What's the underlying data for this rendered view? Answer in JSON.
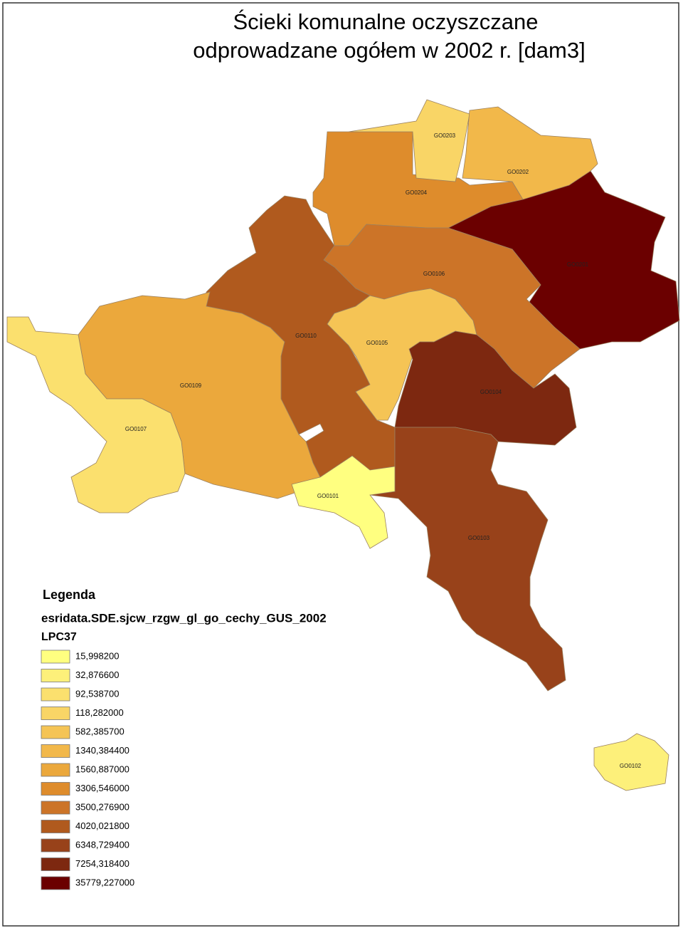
{
  "title": {
    "lines": [
      "Ścieki komunalne oczyszczane",
      "odprowadzane ogółem w 2002 r. [dam3]"
    ]
  },
  "regions": [
    {
      "label": "GO0204",
      "color": "#de8c2c"
    },
    {
      "label": "GO0203",
      "color": "#f9d566"
    },
    {
      "label": "GO0202",
      "color": "#f2b84a"
    },
    {
      "label": "GO0201",
      "color": "#6b0000"
    },
    {
      "label": "GO0106",
      "color": "#cc7428"
    },
    {
      "label": "GO0110",
      "color": "#b05a1e"
    },
    {
      "label": "GO0105",
      "color": "#f5c455"
    },
    {
      "label": "GO0104",
      "color": "#7d2810"
    },
    {
      "label": "GO0103",
      "color": "#98421a"
    },
    {
      "label": "GO0109",
      "color": "#eba83c"
    },
    {
      "label": "GO0107",
      "color": "#fbe06e"
    },
    {
      "label": "GO0101",
      "color": "#ffff80"
    },
    {
      "label": "GO0102",
      "color": "#fdf07a"
    }
  ],
  "legend": {
    "heading": "Legenda",
    "layer": "esridata.SDE.sjcw_rzgw_gl_go_cechy_GUS_2002",
    "field": "LPC37",
    "classes": [
      {
        "label": "15,998200",
        "color": "#ffff80"
      },
      {
        "label": "32,876600",
        "color": "#fdf07a"
      },
      {
        "label": "92,538700",
        "color": "#fbe06e"
      },
      {
        "label": "118,282000",
        "color": "#f9d566"
      },
      {
        "label": "582,385700",
        "color": "#f5c455"
      },
      {
        "label": "1340,384400",
        "color": "#f2b84a"
      },
      {
        "label": "1560,887000",
        "color": "#eba83c"
      },
      {
        "label": "3306,546000",
        "color": "#de8c2c"
      },
      {
        "label": "3500,276900",
        "color": "#cc7428"
      },
      {
        "label": "4020,021800",
        "color": "#b05a1e"
      },
      {
        "label": "6348,729400",
        "color": "#98421a"
      },
      {
        "label": "7254,318400",
        "color": "#7d2810"
      },
      {
        "label": "35779,227000",
        "color": "#6b0000"
      }
    ]
  }
}
